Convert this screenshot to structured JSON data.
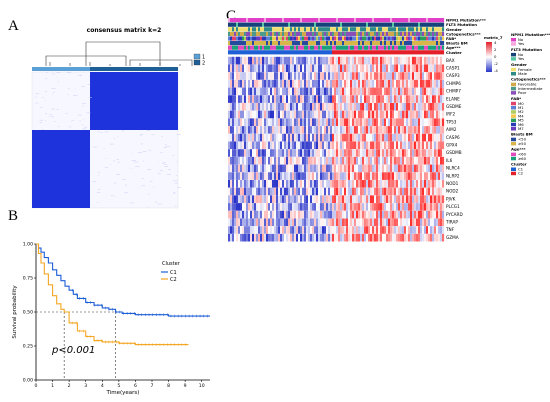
{
  "panels": {
    "a": {
      "letter": "A",
      "title": "consensus matrix k=2",
      "legend": [
        "1",
        "2"
      ],
      "colors": {
        "cluster1": "#5aa0d6",
        "cluster2": "#1f5f97",
        "block": "#1f33dd"
      }
    },
    "b": {
      "letter": "B",
      "chart_data": {
        "type": "line",
        "title": "",
        "xlabel": "Time(years)",
        "ylabel": "Survival probability",
        "xlim": [
          0,
          10.5
        ],
        "ylim": [
          0,
          1.0
        ],
        "xticks": [
          0,
          1,
          2,
          3,
          4,
          5,
          6,
          7,
          8,
          9,
          10
        ],
        "yticks": [
          "0.00",
          "0.25",
          "0.50",
          "0.75",
          "1.00"
        ],
        "legend_title": "Cluster",
        "legend_position": "right",
        "annotation": "p<0.001",
        "median_survival": {
          "C1": 4.8,
          "C2": 1.7
        },
        "series": [
          {
            "name": "C1",
            "color": "#1f5fd6",
            "x": [
              0,
              0.15,
              0.3,
              0.5,
              0.75,
              1.0,
              1.25,
              1.5,
              1.75,
              2.0,
              2.25,
              2.5,
              3.0,
              3.5,
              4.0,
              4.4,
              4.8,
              5.2,
              6.0,
              7.0,
              8.0,
              9.0,
              10.0,
              10.5
            ],
            "y": [
              1.0,
              0.97,
              0.94,
              0.9,
              0.86,
              0.81,
              0.77,
              0.73,
              0.69,
              0.66,
              0.63,
              0.6,
              0.57,
              0.55,
              0.53,
              0.52,
              0.5,
              0.49,
              0.48,
              0.48,
              0.47,
              0.47,
              0.47,
              0.47
            ]
          },
          {
            "name": "C2",
            "color": "#f5a623",
            "x": [
              0,
              0.15,
              0.3,
              0.5,
              0.75,
              1.0,
              1.25,
              1.5,
              1.7,
              2.0,
              2.5,
              3.0,
              3.5,
              4.0,
              5.0,
              6.0,
              7.0,
              8.0,
              9.0,
              9.2
            ],
            "y": [
              1.0,
              0.93,
              0.86,
              0.78,
              0.7,
              0.62,
              0.56,
              0.52,
              0.5,
              0.42,
              0.36,
              0.32,
              0.29,
              0.28,
              0.27,
              0.26,
              0.26,
              0.26,
              0.26,
              0.26
            ]
          }
        ]
      }
    },
    "c": {
      "letter": "C",
      "annotation_tracks": [
        "NPM1 Mutation***",
        "FLT3 Mutation",
        "Gender",
        "Cytogenetics***",
        "FAB*",
        "Blasts BM",
        "Age***",
        "Cluster"
      ],
      "genes": [
        "BAX",
        "CASP1",
        "CASP3",
        "CHMP6",
        "CHMP7",
        "ELANE",
        "GSDME",
        "IRF2",
        "TP53",
        "AIM2",
        "CASP6",
        "GPX4",
        "GSDMB",
        "IL6",
        "NLRC4",
        "NLRP2",
        "NOD1",
        "NOD2",
        "PJVK",
        "PLCG1",
        "PYCARD",
        "TIRAP",
        "TNF",
        "GZMA"
      ],
      "scale": {
        "title": "matrix_7",
        "ticks": [
          "4",
          "2",
          "0",
          "-2",
          "-4"
        ]
      },
      "legend": [
        {
          "title": "NPM1 Mutation***",
          "items": [
            {
              "label": "No",
              "color": "#e040c8"
            },
            {
              "label": "Yes",
              "color": "#f6a6df"
            }
          ]
        },
        {
          "title": "FLT3 Mutation",
          "items": [
            {
              "label": "No",
              "color": "#16437a"
            },
            {
              "label": "Yes",
              "color": "#54c6a0"
            }
          ]
        },
        {
          "title": "Gender",
          "items": [
            {
              "label": "Female",
              "color": "#f0df70"
            },
            {
              "label": "Male",
              "color": "#2f8a8a"
            }
          ]
        },
        {
          "title": "Cytogenetics***",
          "items": [
            {
              "label": "Favorable",
              "color": "#d1a84a"
            },
            {
              "label": "Intermediate",
              "color": "#4c9a87"
            },
            {
              "label": "Poor",
              "color": "#8a4eb8"
            }
          ]
        },
        {
          "title": "FAB*",
          "items": [
            {
              "label": "M0",
              "color": "#e0446c"
            },
            {
              "label": "M1",
              "color": "#5d7fd6"
            },
            {
              "label": "M2",
              "color": "#b0cc5c"
            },
            {
              "label": "M4",
              "color": "#f2c94c"
            },
            {
              "label": "M5",
              "color": "#2b9c5a"
            },
            {
              "label": "M6",
              "color": "#2b3ab4"
            },
            {
              "label": "M7",
              "color": "#6a3cbf"
            }
          ]
        },
        {
          "title": "Blasts BM",
          "items": [
            {
              "label": "<50",
              "color": "#264a9c"
            },
            {
              "label": "≥50",
              "color": "#d7b64a"
            }
          ]
        },
        {
          "title": "Age***",
          "items": [
            {
              "label": "<60",
              "color": "#e24bc0"
            },
            {
              "label": "≥60",
              "color": "#1aa07a"
            }
          ]
        },
        {
          "title": "Cluster",
          "items": [
            {
              "label": "C1",
              "color": "#1f5fd6"
            },
            {
              "label": "C2",
              "color": "#e3202a"
            }
          ]
        }
      ]
    }
  }
}
